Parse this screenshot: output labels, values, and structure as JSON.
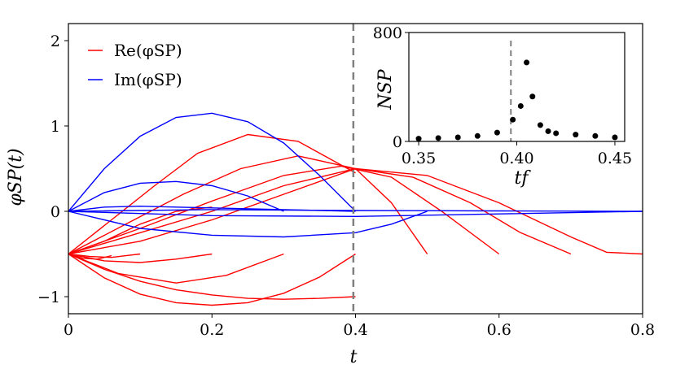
{
  "chart_data": [
    {
      "type": "line",
      "name": "main",
      "xlabel": "t",
      "ylabel": "φSP(t)",
      "xlim": [
        0,
        0.8
      ],
      "ylim": [
        -1.2,
        2.2
      ],
      "xticks": [
        0,
        0.2,
        0.4,
        0.6,
        0.8
      ],
      "xtick_labels": [
        "0",
        "0.2",
        "0.4",
        "0.6",
        "0.8"
      ],
      "yticks": [
        -1,
        0,
        1,
        2
      ],
      "ytick_labels": [
        "−1",
        "0",
        "1",
        "2"
      ],
      "vline": 0.397,
      "legend": [
        {
          "label": "Re(φSP)",
          "color": "#ff0000"
        },
        {
          "label": "Im(φSP)",
          "color": "#0000ff"
        }
      ],
      "legend_position": "top-left",
      "series": [
        {
          "name": "Re tf=0.1",
          "color": "#ff0000",
          "x": [
            0,
            0.03,
            0.06,
            0.08,
            0.1
          ],
          "y": [
            -0.5,
            -0.53,
            -0.54,
            -0.52,
            -0.5
          ]
        },
        {
          "name": "Re tf=0.2",
          "color": "#ff0000",
          "x": [
            0,
            0.05,
            0.1,
            0.15,
            0.2
          ],
          "y": [
            -0.5,
            -0.58,
            -0.6,
            -0.56,
            -0.5
          ]
        },
        {
          "name": "Re tf=0.3",
          "color": "#ff0000",
          "x": [
            0,
            0.07,
            0.15,
            0.22,
            0.3
          ],
          "y": [
            -0.5,
            -0.73,
            -0.84,
            -0.75,
            -0.5
          ]
        },
        {
          "name": "Re tf=0.4 lower",
          "color": "#ff0000",
          "x": [
            0,
            0.05,
            0.1,
            0.15,
            0.2,
            0.25,
            0.3,
            0.35,
            0.4
          ],
          "y": [
            -0.5,
            -0.78,
            -0.97,
            -1.07,
            -1.1,
            -1.07,
            -0.96,
            -0.77,
            -0.5
          ]
        },
        {
          "name": "Re tf=0.4 upper",
          "color": "#ff0000",
          "x": [
            0,
            0.05,
            0.1,
            0.15,
            0.2,
            0.25,
            0.3,
            0.35,
            0.4
          ],
          "y": [
            -0.5,
            -0.68,
            -0.82,
            -0.92,
            -0.98,
            -1.02,
            -1.03,
            -1.02,
            -1.0
          ]
        },
        {
          "name": "Re tf=0.1 short",
          "color": "#ff0000",
          "x": [
            0,
            0.02,
            0.04,
            0.06
          ],
          "y": [
            -0.5,
            -0.55,
            -0.56,
            -0.52
          ]
        },
        {
          "name": "Re a",
          "color": "#ff0000",
          "x": [
            0,
            0.06,
            0.12,
            0.18,
            0.25,
            0.32,
            0.4
          ],
          "y": [
            -0.5,
            -0.1,
            0.3,
            0.68,
            0.9,
            0.82,
            0.45
          ]
        },
        {
          "name": "Re b",
          "color": "#ff0000",
          "x": [
            0,
            0.08,
            0.16,
            0.24,
            0.32,
            0.4,
            0.45,
            0.5
          ],
          "y": [
            -0.5,
            -0.15,
            0.2,
            0.5,
            0.65,
            0.5,
            0.1,
            -0.5
          ]
        },
        {
          "name": "Re c",
          "color": "#ff0000",
          "x": [
            0,
            0.1,
            0.2,
            0.3,
            0.38,
            0.45,
            0.52,
            0.6
          ],
          "y": [
            -0.5,
            -0.2,
            0.12,
            0.42,
            0.53,
            0.4,
            0.0,
            -0.5
          ]
        },
        {
          "name": "Re d",
          "color": "#ff0000",
          "x": [
            0,
            0.1,
            0.2,
            0.3,
            0.4,
            0.48,
            0.56,
            0.63,
            0.7
          ],
          "y": [
            -0.5,
            -0.25,
            0.0,
            0.3,
            0.5,
            0.4,
            0.1,
            -0.25,
            -0.5
          ]
        },
        {
          "name": "Re e",
          "color": "#ff0000",
          "x": [
            0,
            0.1,
            0.2,
            0.3,
            0.4,
            0.5,
            0.6,
            0.7,
            0.75,
            0.8
          ],
          "y": [
            -0.5,
            -0.35,
            -0.1,
            0.2,
            0.5,
            0.42,
            0.1,
            -0.3,
            -0.48,
            -0.5
          ]
        },
        {
          "name": "Re f",
          "color": "#ff0000",
          "x": [
            0,
            0.05,
            0.1,
            0.15,
            0.2
          ],
          "y": [
            -0.5,
            -0.35,
            -0.15,
            0.0,
            0.05
          ]
        },
        {
          "name": "Im large",
          "color": "#0000ff",
          "x": [
            0,
            0.05,
            0.1,
            0.15,
            0.2,
            0.25,
            0.3,
            0.35,
            0.4
          ],
          "y": [
            0,
            0.5,
            0.88,
            1.1,
            1.15,
            1.05,
            0.8,
            0.42,
            0.0
          ]
        },
        {
          "name": "Im mid",
          "color": "#0000ff",
          "x": [
            0,
            0.05,
            0.1,
            0.15,
            0.2,
            0.25,
            0.3
          ],
          "y": [
            0,
            0.22,
            0.33,
            0.35,
            0.3,
            0.18,
            0.0
          ]
        },
        {
          "name": "Im small1",
          "color": "#0000ff",
          "x": [
            0,
            0.05,
            0.1,
            0.15,
            0.2,
            0.3,
            0.4
          ],
          "y": [
            0,
            0.05,
            0.06,
            0.05,
            0.04,
            0.02,
            0.0
          ]
        },
        {
          "name": "Im neg",
          "color": "#0000ff",
          "x": [
            0,
            0.1,
            0.2,
            0.3,
            0.4,
            0.45,
            0.5
          ],
          "y": [
            0,
            -0.2,
            -0.28,
            -0.3,
            -0.25,
            -0.15,
            0.0
          ]
        },
        {
          "name": "Im flat neg",
          "color": "#0000ff",
          "x": [
            0,
            0.2,
            0.4,
            0.6,
            0.8
          ],
          "y": [
            0,
            -0.05,
            -0.06,
            -0.03,
            0.0
          ]
        },
        {
          "name": "Im flat",
          "color": "#0000ff",
          "x": [
            0,
            0.2,
            0.4,
            0.6,
            0.8
          ],
          "y": [
            0,
            0.02,
            0.01,
            0.005,
            0.0
          ]
        }
      ]
    },
    {
      "type": "scatter",
      "name": "inset",
      "xlabel": "tf",
      "ylabel": "NSP",
      "xlim": [
        0.345,
        0.455
      ],
      "ylim": [
        0,
        800
      ],
      "xticks": [
        0.35,
        0.4,
        0.45
      ],
      "xtick_labels": [
        "0.35",
        "0.40",
        "0.45"
      ],
      "yticks": [
        0,
        800
      ],
      "ytick_labels": [
        "0",
        "800"
      ],
      "vline": 0.397,
      "x": [
        0.35,
        0.36,
        0.37,
        0.38,
        0.39,
        0.398,
        0.402,
        0.405,
        0.408,
        0.412,
        0.416,
        0.42,
        0.43,
        0.44,
        0.45
      ],
      "y": [
        20,
        25,
        30,
        40,
        65,
        160,
        260,
        580,
        330,
        120,
        75,
        60,
        50,
        40,
        30
      ]
    }
  ]
}
